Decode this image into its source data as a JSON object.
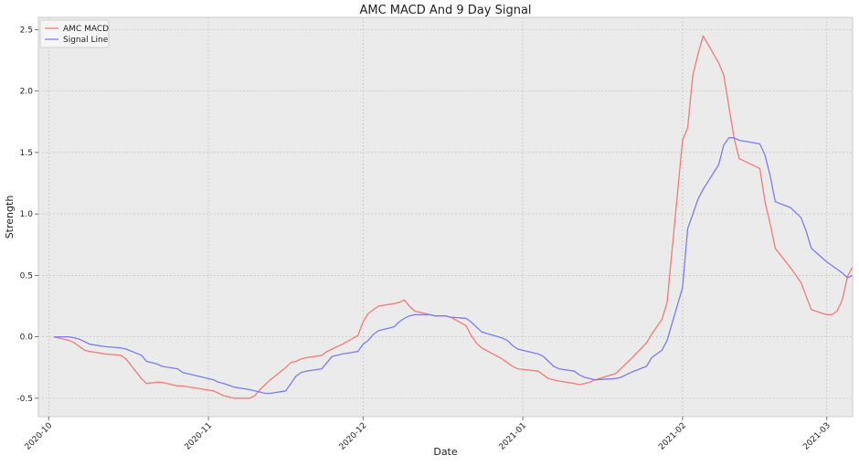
{
  "chart_data": {
    "type": "line",
    "title": "AMC MACD And 9 Day Signal",
    "xlabel": "Date",
    "ylabel": "Strength",
    "ylim": [
      -0.65,
      2.6
    ],
    "xlim": [
      "2020-09-29",
      "2021-03-06"
    ],
    "x_ticks": [
      "2020-10",
      "2020-11",
      "2020-12",
      "2021-01",
      "2021-02",
      "2021-03"
    ],
    "y_ticks": [
      "-0.5",
      "0.0",
      "0.5",
      "1.0",
      "1.5",
      "2.0",
      "2.5"
    ],
    "grid": true,
    "legend_position": "top-left",
    "series": [
      {
        "name": "AMC MACD",
        "color": "#f07b7b",
        "points": [
          [
            "2020-10-02",
            0.0
          ],
          [
            "2020-10-05",
            -0.03
          ],
          [
            "2020-10-06",
            -0.05
          ],
          [
            "2020-10-07",
            -0.08
          ],
          [
            "2020-10-08",
            -0.11
          ],
          [
            "2020-10-09",
            -0.12
          ],
          [
            "2020-10-12",
            -0.14
          ],
          [
            "2020-10-15",
            -0.15
          ],
          [
            "2020-10-16",
            -0.18
          ],
          [
            "2020-10-19",
            -0.34
          ],
          [
            "2020-10-20",
            -0.38
          ],
          [
            "2020-10-22",
            -0.37
          ],
          [
            "2020-10-23",
            -0.37
          ],
          [
            "2020-10-26",
            -0.4
          ],
          [
            "2020-10-27",
            -0.4
          ],
          [
            "2020-10-30",
            -0.42
          ],
          [
            "2020-11-02",
            -0.44
          ],
          [
            "2020-11-03",
            -0.46
          ],
          [
            "2020-11-04",
            -0.48
          ],
          [
            "2020-11-06",
            -0.5
          ],
          [
            "2020-11-09",
            -0.5
          ],
          [
            "2020-11-10",
            -0.48
          ],
          [
            "2020-11-11",
            -0.43
          ],
          [
            "2020-11-12",
            -0.39
          ],
          [
            "2020-11-13",
            -0.35
          ],
          [
            "2020-11-16",
            -0.25
          ],
          [
            "2020-11-17",
            -0.21
          ],
          [
            "2020-11-18",
            -0.2
          ],
          [
            "2020-11-19",
            -0.18
          ],
          [
            "2020-11-20",
            -0.17
          ],
          [
            "2020-11-23",
            -0.15
          ],
          [
            "2020-11-24",
            -0.12
          ],
          [
            "2020-11-25",
            -0.1
          ],
          [
            "2020-11-27",
            -0.06
          ],
          [
            "2020-11-30",
            0.01
          ],
          [
            "2020-12-01",
            0.12
          ],
          [
            "2020-12-02",
            0.19
          ],
          [
            "2020-12-03",
            0.22
          ],
          [
            "2020-12-04",
            0.25
          ],
          [
            "2020-12-07",
            0.27
          ],
          [
            "2020-12-08",
            0.28
          ],
          [
            "2020-12-09",
            0.3
          ],
          [
            "2020-12-10",
            0.25
          ],
          [
            "2020-12-11",
            0.21
          ],
          [
            "2020-12-14",
            0.18
          ],
          [
            "2020-12-15",
            0.17
          ],
          [
            "2020-12-16",
            0.17
          ],
          [
            "2020-12-17",
            0.17
          ],
          [
            "2020-12-18",
            0.16
          ],
          [
            "2020-12-21",
            0.09
          ],
          [
            "2020-12-22",
            0.01
          ],
          [
            "2020-12-23",
            -0.05
          ],
          [
            "2020-12-24",
            -0.09
          ],
          [
            "2020-12-28",
            -0.18
          ],
          [
            "2020-12-29",
            -0.21
          ],
          [
            "2020-12-30",
            -0.24
          ],
          [
            "2020-12-31",
            -0.26
          ],
          [
            "2021-01-04",
            -0.28
          ],
          [
            "2021-01-05",
            -0.31
          ],
          [
            "2021-01-06",
            -0.34
          ],
          [
            "2021-01-07",
            -0.35
          ],
          [
            "2021-01-08",
            -0.36
          ],
          [
            "2021-01-11",
            -0.38
          ],
          [
            "2021-01-12",
            -0.39
          ],
          [
            "2021-01-13",
            -0.38
          ],
          [
            "2021-01-14",
            -0.37
          ],
          [
            "2021-01-15",
            -0.35
          ],
          [
            "2021-01-19",
            -0.3
          ],
          [
            "2021-01-20",
            -0.26
          ],
          [
            "2021-01-21",
            -0.22
          ],
          [
            "2021-01-22",
            -0.18
          ],
          [
            "2021-01-25",
            -0.05
          ],
          [
            "2021-01-26",
            0.02
          ],
          [
            "2021-01-27",
            0.08
          ],
          [
            "2021-01-28",
            0.14
          ],
          [
            "2021-01-29",
            0.28
          ],
          [
            "2021-02-01",
            1.6
          ],
          [
            "2021-02-02",
            1.7
          ],
          [
            "2021-02-03",
            2.13
          ],
          [
            "2021-02-04",
            2.3
          ],
          [
            "2021-02-05",
            2.45
          ],
          [
            "2021-02-08",
            2.23
          ],
          [
            "2021-02-09",
            2.13
          ],
          [
            "2021-02-10",
            1.87
          ],
          [
            "2021-02-11",
            1.62
          ],
          [
            "2021-02-12",
            1.45
          ],
          [
            "2021-02-16",
            1.37
          ],
          [
            "2021-02-17",
            1.1
          ],
          [
            "2021-02-18",
            0.92
          ],
          [
            "2021-02-19",
            0.72
          ],
          [
            "2021-02-22",
            0.56
          ],
          [
            "2021-02-23",
            0.5
          ],
          [
            "2021-02-24",
            0.44
          ],
          [
            "2021-02-25",
            0.33
          ],
          [
            "2021-02-26",
            0.22
          ],
          [
            "2021-03-01",
            0.18
          ],
          [
            "2021-03-02",
            0.18
          ],
          [
            "2021-03-03",
            0.21
          ],
          [
            "2021-03-04",
            0.3
          ],
          [
            "2021-03-05",
            0.49
          ],
          [
            "2021-03-06",
            0.57
          ]
        ]
      },
      {
        "name": "Signal Line",
        "color": "#7b7bf0",
        "points": [
          [
            "2020-10-02",
            0.0
          ],
          [
            "2020-10-05",
            0.0
          ],
          [
            "2020-10-06",
            -0.01
          ],
          [
            "2020-10-07",
            -0.02
          ],
          [
            "2020-10-08",
            -0.04
          ],
          [
            "2020-10-09",
            -0.06
          ],
          [
            "2020-10-12",
            -0.08
          ],
          [
            "2020-10-15",
            -0.09
          ],
          [
            "2020-10-16",
            -0.1
          ],
          [
            "2020-10-19",
            -0.15
          ],
          [
            "2020-10-20",
            -0.2
          ],
          [
            "2020-10-22",
            -0.22
          ],
          [
            "2020-10-23",
            -0.24
          ],
          [
            "2020-10-26",
            -0.26
          ],
          [
            "2020-10-27",
            -0.29
          ],
          [
            "2020-10-30",
            -0.32
          ],
          [
            "2020-11-02",
            -0.35
          ],
          [
            "2020-11-03",
            -0.37
          ],
          [
            "2020-11-04",
            -0.38
          ],
          [
            "2020-11-06",
            -0.41
          ],
          [
            "2020-11-09",
            -0.43
          ],
          [
            "2020-11-10",
            -0.44
          ],
          [
            "2020-11-11",
            -0.45
          ],
          [
            "2020-11-12",
            -0.46
          ],
          [
            "2020-11-13",
            -0.46
          ],
          [
            "2020-11-16",
            -0.44
          ],
          [
            "2020-11-17",
            -0.38
          ],
          [
            "2020-11-18",
            -0.32
          ],
          [
            "2020-11-19",
            -0.29
          ],
          [
            "2020-11-20",
            -0.28
          ],
          [
            "2020-11-23",
            -0.26
          ],
          [
            "2020-11-24",
            -0.21
          ],
          [
            "2020-11-25",
            -0.16
          ],
          [
            "2020-11-27",
            -0.14
          ],
          [
            "2020-11-30",
            -0.12
          ],
          [
            "2020-12-01",
            -0.06
          ],
          [
            "2020-12-02",
            -0.03
          ],
          [
            "2020-12-03",
            0.02
          ],
          [
            "2020-12-04",
            0.05
          ],
          [
            "2020-12-07",
            0.08
          ],
          [
            "2020-12-08",
            0.12
          ],
          [
            "2020-12-09",
            0.15
          ],
          [
            "2020-12-10",
            0.17
          ],
          [
            "2020-12-11",
            0.18
          ],
          [
            "2020-12-14",
            0.18
          ],
          [
            "2020-12-15",
            0.17
          ],
          [
            "2020-12-16",
            0.17
          ],
          [
            "2020-12-17",
            0.17
          ],
          [
            "2020-12-18",
            0.16
          ],
          [
            "2020-12-21",
            0.15
          ],
          [
            "2020-12-22",
            0.12
          ],
          [
            "2020-12-23",
            0.08
          ],
          [
            "2020-12-24",
            0.04
          ],
          [
            "2020-12-28",
            -0.01
          ],
          [
            "2020-12-29",
            -0.03
          ],
          [
            "2020-12-30",
            -0.07
          ],
          [
            "2020-12-31",
            -0.1
          ],
          [
            "2021-01-04",
            -0.14
          ],
          [
            "2021-01-05",
            -0.16
          ],
          [
            "2021-01-06",
            -0.2
          ],
          [
            "2021-01-07",
            -0.24
          ],
          [
            "2021-01-08",
            -0.26
          ],
          [
            "2021-01-11",
            -0.28
          ],
          [
            "2021-01-12",
            -0.31
          ],
          [
            "2021-01-13",
            -0.33
          ],
          [
            "2021-01-14",
            -0.34
          ],
          [
            "2021-01-15",
            -0.35
          ],
          [
            "2021-01-19",
            -0.34
          ],
          [
            "2021-01-20",
            -0.33
          ],
          [
            "2021-01-21",
            -0.31
          ],
          [
            "2021-01-22",
            -0.29
          ],
          [
            "2021-01-25",
            -0.24
          ],
          [
            "2021-01-26",
            -0.17
          ],
          [
            "2021-01-27",
            -0.14
          ],
          [
            "2021-01-28",
            -0.11
          ],
          [
            "2021-01-29",
            -0.03
          ],
          [
            "2021-02-01",
            0.4
          ],
          [
            "2021-02-02",
            0.88
          ],
          [
            "2021-02-03",
            1.0
          ],
          [
            "2021-02-04",
            1.12
          ],
          [
            "2021-02-05",
            1.2
          ],
          [
            "2021-02-08",
            1.4
          ],
          [
            "2021-02-09",
            1.56
          ],
          [
            "2021-02-10",
            1.62
          ],
          [
            "2021-02-11",
            1.62
          ],
          [
            "2021-02-12",
            1.6
          ],
          [
            "2021-02-16",
            1.57
          ],
          [
            "2021-02-17",
            1.48
          ],
          [
            "2021-02-18",
            1.31
          ],
          [
            "2021-02-19",
            1.1
          ],
          [
            "2021-02-22",
            1.05
          ],
          [
            "2021-02-23",
            1.01
          ],
          [
            "2021-02-24",
            0.97
          ],
          [
            "2021-02-25",
            0.86
          ],
          [
            "2021-02-26",
            0.72
          ],
          [
            "2021-03-01",
            0.61
          ],
          [
            "2021-03-02",
            0.58
          ],
          [
            "2021-03-03",
            0.55
          ],
          [
            "2021-03-04",
            0.52
          ],
          [
            "2021-03-05",
            0.48
          ],
          [
            "2021-03-06",
            0.5
          ]
        ]
      }
    ]
  }
}
